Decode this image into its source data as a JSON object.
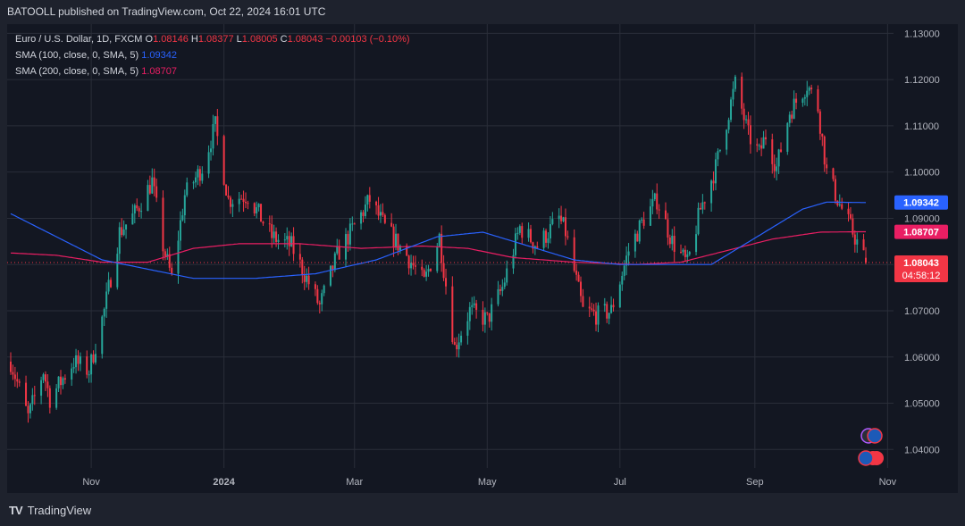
{
  "header": {
    "text": "BATOOLL published on TradingView.com, Oct 22, 2024 16:01 UTC"
  },
  "legend": {
    "symbol": "Euro / U.S. Dollar, 1D, FXCM",
    "open_label": "O",
    "open": "1.08146",
    "high_label": "H",
    "high": "1.08377",
    "low_label": "L",
    "low": "1.08005",
    "close_label": "C",
    "close": "1.08043",
    "change": "−0.00103 (−0.10%)",
    "sma100_label": "SMA (100, close, 0, SMA, 5)",
    "sma100_value": "1.09342",
    "sma200_label": "SMA (200, close, 0, SMA, 5)",
    "sma200_value": "1.08707"
  },
  "footer": {
    "logo": "TV",
    "brand": "TradingView"
  },
  "colors": {
    "background": "#1e222d",
    "up": "#26a69a",
    "down": "#f23645",
    "sma100": "#2962ff",
    "sma200": "#e91e63",
    "grid": "#2a2e39",
    "axis_text": "#b2b5be"
  },
  "chart_data": {
    "type": "candlestick",
    "symbol": "EURUSD",
    "timeframe": "1D",
    "x_tick_labels": [
      "Nov",
      "2024",
      "Mar",
      "May",
      "Jul",
      "Sep",
      "Nov"
    ],
    "y_tick_labels": [
      "1.13000",
      "1.12000",
      "1.11000",
      "1.10000",
      "1.09000",
      "1.08000",
      "1.07000",
      "1.06000",
      "1.05000",
      "1.04000"
    ],
    "ylim": [
      1.036,
      1.132
    ],
    "grid": true,
    "price_labels": [
      {
        "name": "SMA 100",
        "value": "1.09342"
      },
      {
        "name": "SMA 200",
        "value": "1.08707"
      },
      {
        "name": "Last close",
        "value": "1.08043",
        "countdown": "04:58:12"
      }
    ],
    "close_path": [
      [
        "2023-09-25",
        1.059
      ],
      [
        "2023-10-03",
        1.047
      ],
      [
        "2023-10-10",
        1.057
      ],
      [
        "2023-10-13",
        1.051
      ],
      [
        "2023-10-24",
        1.059
      ],
      [
        "2023-10-31",
        1.057
      ],
      [
        "2023-11-07",
        1.07
      ],
      [
        "2023-11-14",
        1.087
      ],
      [
        "2023-11-21",
        1.091
      ],
      [
        "2023-11-29",
        1.098
      ],
      [
        "2023-12-04",
        1.084
      ],
      [
        "2023-12-08",
        1.077
      ],
      [
        "2023-12-14",
        1.095
      ],
      [
        "2023-12-22",
        1.101
      ],
      [
        "2023-12-28",
        1.11
      ],
      [
        "2024-01-03",
        1.094
      ],
      [
        "2024-01-12",
        1.095
      ],
      [
        "2024-01-23",
        1.086
      ],
      [
        "2024-02-01",
        1.084
      ],
      [
        "2024-02-14",
        1.071
      ],
      [
        "2024-02-22",
        1.082
      ],
      [
        "2024-03-08",
        1.094
      ],
      [
        "2024-03-15",
        1.088
      ],
      [
        "2024-03-25",
        1.082
      ],
      [
        "2024-04-02",
        1.076
      ],
      [
        "2024-04-09",
        1.086
      ],
      [
        "2024-04-16",
        1.062
      ],
      [
        "2024-04-23",
        1.07
      ],
      [
        "2024-05-01",
        1.068
      ],
      [
        "2024-05-08",
        1.075
      ],
      [
        "2024-05-16",
        1.088
      ],
      [
        "2024-05-24",
        1.084
      ],
      [
        "2024-06-03",
        1.09
      ],
      [
        "2024-06-06",
        1.087
      ],
      [
        "2024-06-14",
        1.07
      ],
      [
        "2024-06-21",
        1.069
      ],
      [
        "2024-06-27",
        1.07
      ],
      [
        "2024-07-05",
        1.083
      ],
      [
        "2024-07-12",
        1.09
      ],
      [
        "2024-07-18",
        1.094
      ],
      [
        "2024-07-25",
        1.085
      ],
      [
        "2024-08-01",
        1.08
      ],
      [
        "2024-08-07",
        1.092
      ],
      [
        "2024-08-14",
        1.101
      ],
      [
        "2024-08-23",
        1.119
      ],
      [
        "2024-08-29",
        1.108
      ],
      [
        "2024-09-03",
        1.104
      ],
      [
        "2024-09-06",
        1.108
      ],
      [
        "2024-09-11",
        1.101
      ],
      [
        "2024-09-17",
        1.113
      ],
      [
        "2024-09-25",
        1.119
      ],
      [
        "2024-09-30",
        1.114
      ],
      [
        "2024-10-04",
        1.1
      ],
      [
        "2024-10-10",
        1.093
      ],
      [
        "2024-10-16",
        1.087
      ],
      [
        "2024-10-22",
        1.0804
      ]
    ],
    "sma100": [
      [
        "2023-09-25",
        1.091
      ],
      [
        "2023-10-16",
        1.086
      ],
      [
        "2023-11-06",
        1.081
      ],
      [
        "2023-11-27",
        1.079
      ],
      [
        "2023-12-18",
        1.077
      ],
      [
        "2024-01-15",
        1.077
      ],
      [
        "2024-02-12",
        1.078
      ],
      [
        "2024-03-11",
        1.081
      ],
      [
        "2024-04-08",
        1.086
      ],
      [
        "2024-04-29",
        1.087
      ],
      [
        "2024-05-20",
        1.084
      ],
      [
        "2024-06-10",
        1.081
      ],
      [
        "2024-07-01",
        1.08
      ],
      [
        "2024-07-22",
        1.08
      ],
      [
        "2024-08-12",
        1.08
      ],
      [
        "2024-08-26",
        1.084
      ],
      [
        "2024-09-09",
        1.088
      ],
      [
        "2024-09-23",
        1.092
      ],
      [
        "2024-10-04",
        1.0935
      ],
      [
        "2024-10-22",
        1.0934
      ]
    ],
    "sma200": [
      [
        "2023-09-25",
        1.0825
      ],
      [
        "2023-10-16",
        1.082
      ],
      [
        "2023-11-06",
        1.0805
      ],
      [
        "2023-11-27",
        1.0805
      ],
      [
        "2023-12-18",
        1.0835
      ],
      [
        "2024-01-08",
        1.0845
      ],
      [
        "2024-02-05",
        1.0845
      ],
      [
        "2024-03-04",
        1.0835
      ],
      [
        "2024-04-01",
        1.084
      ],
      [
        "2024-04-22",
        1.0835
      ],
      [
        "2024-05-13",
        1.0815
      ],
      [
        "2024-06-10",
        1.0805
      ],
      [
        "2024-07-08",
        1.08
      ],
      [
        "2024-07-29",
        1.0805
      ],
      [
        "2024-08-19",
        1.083
      ],
      [
        "2024-09-09",
        1.0855
      ],
      [
        "2024-10-01",
        1.087
      ],
      [
        "2024-10-22",
        1.0871
      ]
    ]
  }
}
